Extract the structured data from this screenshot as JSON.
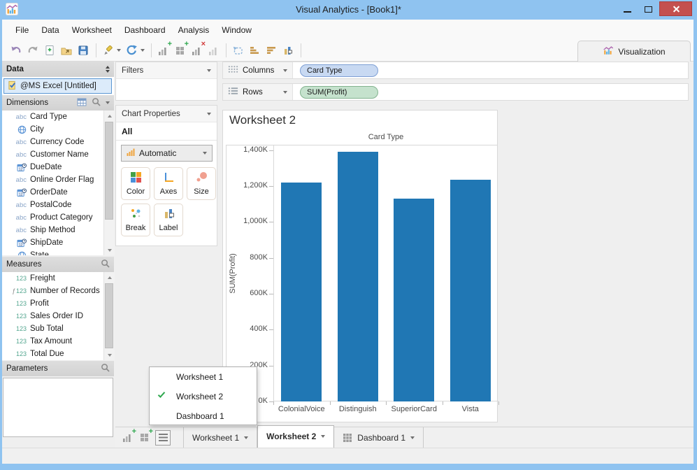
{
  "window": {
    "title": "Visual Analytics - [Book1]*"
  },
  "menu": {
    "items": [
      "File",
      "Data",
      "Worksheet",
      "Dashboard",
      "Analysis",
      "Window"
    ]
  },
  "toolbar": {
    "visualization_label": "Visualization",
    "icons": [
      "undo-icon",
      "redo-icon",
      "new-workbook-icon",
      "open-icon",
      "save-icon",
      "connect-data-icon",
      "refresh-icon",
      "new-worksheet-icon",
      "new-dashboard-icon",
      "clear-worksheet-icon",
      "duplicate-worksheet-icon",
      "swap-axes-icon",
      "sort-ascending-icon",
      "sort-descending-icon",
      "show-labels-icon"
    ]
  },
  "sidebar": {
    "data_header": "Data",
    "connection": "@MS Excel [Untitled]",
    "dimensions": {
      "header": "Dimensions",
      "items": [
        {
          "icon": "abc",
          "label": "Card Type"
        },
        {
          "icon": "geo",
          "label": "City"
        },
        {
          "icon": "abc",
          "label": "Currency Code"
        },
        {
          "icon": "abc",
          "label": "Customer Name"
        },
        {
          "icon": "datetime",
          "label": "DueDate"
        },
        {
          "icon": "abc",
          "label": "Online Order Flag"
        },
        {
          "icon": "datetime",
          "label": "OrderDate"
        },
        {
          "icon": "abc",
          "label": "PostalCode"
        },
        {
          "icon": "abc",
          "label": "Product Category"
        },
        {
          "icon": "abc",
          "label": "Ship Method"
        },
        {
          "icon": "datetime",
          "label": "ShipDate"
        },
        {
          "icon": "geo",
          "label": "State"
        }
      ]
    },
    "measures": {
      "header": "Measures",
      "items": [
        {
          "icon": "num",
          "label": "Freight"
        },
        {
          "icon": "numf",
          "label": "Number of Records"
        },
        {
          "icon": "num",
          "label": "Profit"
        },
        {
          "icon": "num",
          "label": "Sales Order ID"
        },
        {
          "icon": "num",
          "label": "Sub Total"
        },
        {
          "icon": "num",
          "label": "Tax Amount"
        },
        {
          "icon": "num",
          "label": "Total Due"
        }
      ]
    },
    "parameters": {
      "header": "Parameters"
    }
  },
  "filters": {
    "header": "Filters"
  },
  "chart_properties": {
    "header": "Chart Properties",
    "all_label": "All",
    "mark_type": "Automatic",
    "buttons": [
      "Color",
      "Axes",
      "Size",
      "Break",
      "Label"
    ]
  },
  "shelves": {
    "columns_label": "Columns",
    "columns_pill": "Card Type",
    "rows_label": "Rows",
    "rows_pill": "SUM(Profit)"
  },
  "sheet": {
    "title": "Worksheet 2"
  },
  "chart_data": {
    "type": "bar",
    "title": "Card Type",
    "ylabel": "SUM(Profit)",
    "categories": [
      "ColonialVoice",
      "Distinguish",
      "SuperiorCard",
      "Vista"
    ],
    "values": [
      1220000,
      1390000,
      1130000,
      1235000
    ],
    "ylim": [
      0,
      1430000
    ],
    "ytick_step": 200000,
    "ytick_labels": [
      "0K",
      "200K",
      "400K",
      "600K",
      "800K",
      "1,000K",
      "1,200K",
      "1,400K"
    ],
    "bar_color": "#2077B4",
    "grid": false,
    "legend": null
  },
  "sheet_menu": {
    "items": [
      {
        "label": "Worksheet 1",
        "checked": false
      },
      {
        "label": "Worksheet 2",
        "checked": true
      },
      {
        "label": "Dashboard 1",
        "checked": false
      }
    ]
  },
  "tabs": {
    "items": [
      {
        "label": "Worksheet 1",
        "active": false,
        "icon": null
      },
      {
        "label": "Worksheet 2",
        "active": true,
        "icon": null
      },
      {
        "label": "Dashboard 1",
        "active": false,
        "icon": "grid"
      }
    ]
  },
  "status_bar": {
    "text": ""
  },
  "colors": {
    "titlebar": "#8fc3f0",
    "close_button": "#c4504f",
    "bar": "#2077B4",
    "pill_columns_bg": "#c8d9f2",
    "pill_rows_bg": "#c5e2cd",
    "selection_border": "#5a96d2"
  }
}
